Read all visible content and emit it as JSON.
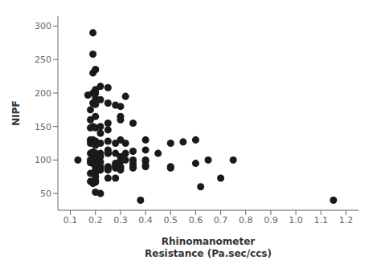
{
  "chart_data": {
    "type": "scatter",
    "xlabel": "Rhinomanometer\nResistance (Pa.sec/ccs)",
    "ylabel": "NIPF",
    "xlim": [
      0.05,
      1.25
    ],
    "ylim": [
      25,
      315
    ],
    "xticks": [
      0.1,
      0.2,
      0.3,
      0.4,
      0.5,
      0.6,
      0.7,
      0.8,
      0.9,
      {
        "value": 1.0,
        "label": "1.0"
      },
      1.1,
      1.2
    ],
    "yticks": [
      50,
      100,
      150,
      200,
      250,
      300
    ],
    "color": "#1a1a1a",
    "grid": false,
    "marker": "circle",
    "x": [
      0.13,
      0.17,
      0.18,
      0.18,
      0.18,
      0.18,
      0.18,
      0.18,
      0.18,
      0.18,
      0.18,
      0.18,
      0.19,
      0.19,
      0.19,
      0.19,
      0.19,
      0.19,
      0.19,
      0.19,
      0.19,
      0.19,
      0.19,
      0.19,
      0.19,
      0.19,
      0.2,
      0.2,
      0.2,
      0.2,
      0.2,
      0.2,
      0.2,
      0.2,
      0.2,
      0.2,
      0.2,
      0.2,
      0.2,
      0.2,
      0.2,
      0.2,
      0.2,
      0.2,
      0.2,
      0.2,
      0.2,
      0.2,
      0.2,
      0.2,
      0.2,
      0.22,
      0.22,
      0.22,
      0.22,
      0.22,
      0.22,
      0.22,
      0.22,
      0.22,
      0.22,
      0.22,
      0.22,
      0.25,
      0.25,
      0.25,
      0.25,
      0.25,
      0.25,
      0.25,
      0.25,
      0.25,
      0.25,
      0.25,
      0.25,
      0.25,
      0.28,
      0.28,
      0.28,
      0.28,
      0.28,
      0.28,
      0.28,
      0.28,
      0.3,
      0.3,
      0.3,
      0.3,
      0.3,
      0.3,
      0.3,
      0.3,
      0.3,
      0.3,
      0.32,
      0.32,
      0.32,
      0.32,
      0.35,
      0.35,
      0.35,
      0.35,
      0.35,
      0.35,
      0.38,
      0.4,
      0.4,
      0.4,
      0.4,
      0.4,
      0.4,
      0.45,
      0.5,
      0.5,
      0.5,
      0.55,
      0.6,
      0.6,
      0.62,
      0.65,
      0.7,
      0.75,
      1.15
    ],
    "values": [
      100,
      197,
      175,
      160,
      148,
      130,
      125,
      110,
      100,
      96,
      80,
      68,
      290,
      258,
      230,
      200,
      185,
      150,
      130,
      125,
      112,
      100,
      100,
      97,
      95,
      65,
      235,
      235,
      205,
      200,
      192,
      183,
      165,
      148,
      128,
      125,
      122,
      110,
      110,
      108,
      100,
      100,
      100,
      95,
      90,
      85,
      80,
      75,
      70,
      67,
      52,
      210,
      190,
      150,
      140,
      125,
      110,
      105,
      97,
      90,
      88,
      85,
      50,
      208,
      185,
      155,
      145,
      128,
      115,
      112,
      110,
      110,
      90,
      88,
      85,
      73,
      182,
      125,
      110,
      95,
      92,
      90,
      88,
      73,
      180,
      165,
      160,
      130,
      105,
      100,
      98,
      90,
      88,
      85,
      195,
      125,
      110,
      100,
      155,
      113,
      100,
      95,
      90,
      88,
      40,
      130,
      115,
      100,
      98,
      92,
      90,
      110,
      125,
      90,
      88,
      127,
      130,
      95,
      60,
      100,
      73,
      100,
      40
    ]
  }
}
